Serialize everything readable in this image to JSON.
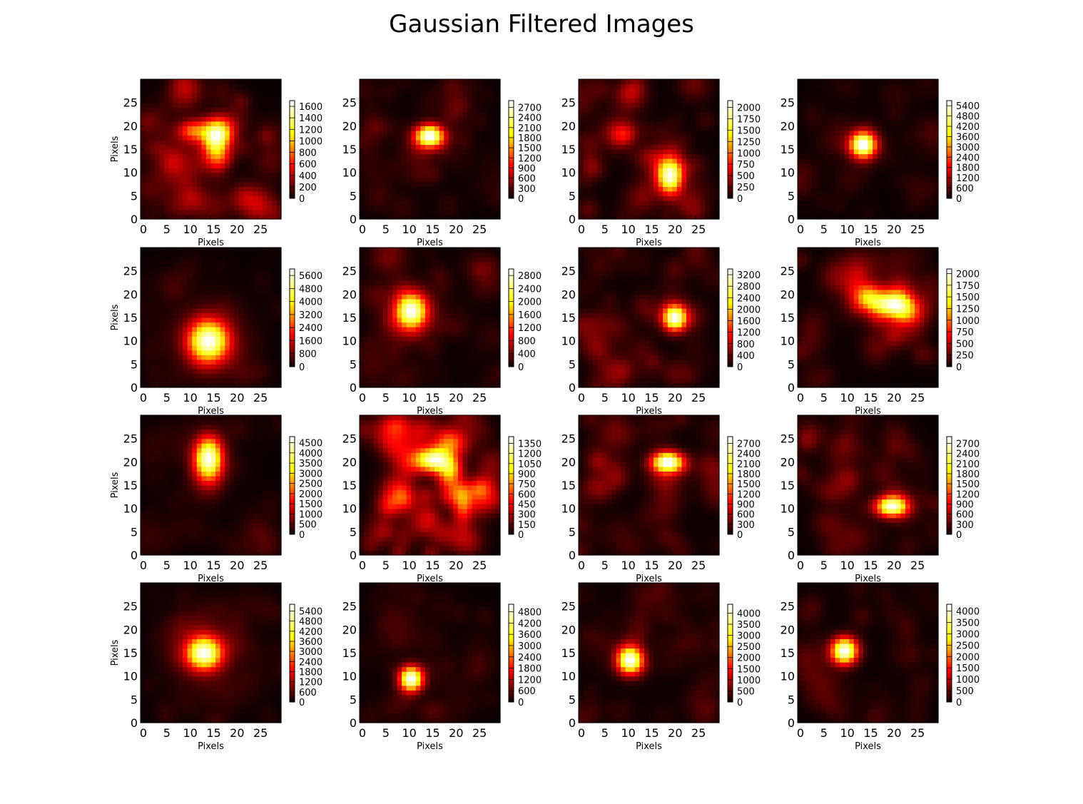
{
  "figure": {
    "title": "Gaussian Filtered Images"
  },
  "colormap": {
    "name": "hot",
    "stops": [
      "#0b0000",
      "#ff0000",
      "#ffff00",
      "#ffffff"
    ]
  },
  "chart_data": [
    {
      "type": "heatmap",
      "row": 0,
      "col": 0,
      "xlabel": "Pixels",
      "ylabel": "Pixels",
      "xticks": [
        0,
        5,
        10,
        15,
        20,
        25
      ],
      "yticks": [
        0,
        5,
        10,
        15,
        20,
        25
      ],
      "xlim": [
        0,
        30
      ],
      "ylim": [
        0,
        30
      ],
      "blobs": [
        {
          "x": 16.5,
          "y": 18.5,
          "sx": 2.2,
          "sy": 2.2,
          "a": 1.0
        },
        {
          "x": 11,
          "y": 19,
          "sx": 2.2,
          "sy": 1.6,
          "a": 0.55
        },
        {
          "x": 16,
          "y": 15,
          "sx": 1.8,
          "sy": 2.5,
          "a": 0.5
        }
      ],
      "noise": 0.28,
      "seed": 11,
      "colorbar": {
        "max": 1700,
        "ticks": [
          0,
          200,
          400,
          600,
          800,
          1000,
          1200,
          1400,
          1600
        ]
      }
    },
    {
      "type": "heatmap",
      "row": 0,
      "col": 1,
      "xlabel": "Pixels",
      "ylabel": "",
      "xticks": [
        0,
        5,
        10,
        15,
        20,
        25
      ],
      "yticks": [
        0,
        5,
        10,
        15,
        20,
        25
      ],
      "xlim": [
        0,
        30
      ],
      "ylim": [
        0,
        30
      ],
      "blobs": [
        {
          "x": 15,
          "y": 18,
          "sx": 2.0,
          "sy": 1.5,
          "a": 1.0
        },
        {
          "x": 16,
          "y": 17,
          "sx": 2.2,
          "sy": 1.8,
          "a": 0.3
        }
      ],
      "noise": 0.14,
      "seed": 23,
      "colorbar": {
        "max": 2900,
        "ticks": [
          0,
          300,
          600,
          900,
          1200,
          1500,
          1800,
          2100,
          2400,
          2700
        ]
      }
    },
    {
      "type": "heatmap",
      "row": 0,
      "col": 2,
      "xlabel": "Pixels",
      "ylabel": "",
      "xticks": [
        0,
        5,
        10,
        15,
        20,
        25
      ],
      "yticks": [
        0,
        5,
        10,
        15,
        20,
        25
      ],
      "xlim": [
        0,
        30
      ],
      "ylim": [
        0,
        30
      ],
      "blobs": [
        {
          "x": 19.5,
          "y": 9,
          "sx": 1.8,
          "sy": 2.4,
          "a": 1.0
        },
        {
          "x": 18,
          "y": 12,
          "sx": 2.5,
          "sy": 2.5,
          "a": 0.3
        }
      ],
      "noise": 0.2,
      "seed": 37,
      "colorbar": {
        "max": 2150,
        "ticks": [
          0,
          250,
          500,
          750,
          1000,
          1250,
          1500,
          1750,
          2000
        ]
      }
    },
    {
      "type": "heatmap",
      "row": 0,
      "col": 3,
      "xlabel": "Pixels",
      "ylabel": "",
      "xticks": [
        0,
        5,
        10,
        15,
        20,
        25
      ],
      "yticks": [
        0,
        5,
        10,
        15,
        20,
        25
      ],
      "xlim": [
        0,
        30
      ],
      "ylim": [
        0,
        30
      ],
      "blobs": [
        {
          "x": 14,
          "y": 16,
          "sx": 1.9,
          "sy": 1.9,
          "a": 1.0
        }
      ],
      "noise": 0.07,
      "seed": 41,
      "colorbar": {
        "max": 5700,
        "ticks": [
          0,
          600,
          1200,
          1800,
          2400,
          3000,
          3600,
          4200,
          4800,
          5400
        ]
      }
    },
    {
      "type": "heatmap",
      "row": 1,
      "col": 0,
      "xlabel": "Pixels",
      "ylabel": "Pixels",
      "xticks": [
        0,
        5,
        10,
        15,
        20,
        25
      ],
      "yticks": [
        0,
        5,
        10,
        15,
        20,
        25
      ],
      "xlim": [
        0,
        30
      ],
      "ylim": [
        0,
        30
      ],
      "blobs": [
        {
          "x": 14.5,
          "y": 10,
          "sx": 2.8,
          "sy": 2.9,
          "a": 1.0
        },
        {
          "x": 14.5,
          "y": 10,
          "sx": 5,
          "sy": 5,
          "a": 0.22
        }
      ],
      "noise": 0.06,
      "seed": 53,
      "colorbar": {
        "max": 6000,
        "ticks": [
          0,
          800,
          1600,
          2400,
          3200,
          4000,
          4800,
          5600
        ]
      }
    },
    {
      "type": "heatmap",
      "row": 1,
      "col": 1,
      "xlabel": "Pixels",
      "ylabel": "",
      "xticks": [
        0,
        5,
        10,
        15,
        20,
        25
      ],
      "yticks": [
        0,
        5,
        10,
        15,
        20,
        25
      ],
      "xlim": [
        0,
        30
      ],
      "ylim": [
        0,
        30
      ],
      "blobs": [
        {
          "x": 11,
          "y": 16.5,
          "sx": 2.2,
          "sy": 2.5,
          "a": 1.0
        },
        {
          "x": 11,
          "y": 16,
          "sx": 4,
          "sy": 4,
          "a": 0.25
        }
      ],
      "noise": 0.12,
      "seed": 67,
      "colorbar": {
        "max": 3000,
        "ticks": [
          0,
          400,
          800,
          1200,
          1600,
          2000,
          2400,
          2800
        ]
      }
    },
    {
      "type": "heatmap",
      "row": 1,
      "col": 2,
      "xlabel": "Pixels",
      "ylabel": "",
      "xticks": [
        0,
        5,
        10,
        15,
        20,
        25
      ],
      "yticks": [
        0,
        5,
        10,
        15,
        20,
        25
      ],
      "xlim": [
        0,
        30
      ],
      "ylim": [
        0,
        30
      ],
      "blobs": [
        {
          "x": 20.5,
          "y": 15,
          "sx": 1.7,
          "sy": 1.9,
          "a": 1.0
        }
      ],
      "noise": 0.15,
      "seed": 79,
      "colorbar": {
        "max": 3400,
        "ticks": [
          0,
          400,
          800,
          1200,
          1600,
          2000,
          2400,
          2800,
          3200
        ]
      }
    },
    {
      "type": "heatmap",
      "row": 1,
      "col": 3,
      "xlabel": "Pixels",
      "ylabel": "",
      "xticks": [
        0,
        5,
        10,
        15,
        20,
        25
      ],
      "yticks": [
        0,
        5,
        10,
        15,
        20,
        25
      ],
      "xlim": [
        0,
        30
      ],
      "ylim": [
        0,
        30
      ],
      "blobs": [
        {
          "x": 20,
          "y": 18,
          "sx": 3.0,
          "sy": 1.8,
          "a": 1.0
        },
        {
          "x": 15,
          "y": 19.5,
          "sx": 2.2,
          "sy": 2.0,
          "a": 0.6
        },
        {
          "x": 23,
          "y": 16,
          "sx": 2.5,
          "sy": 2,
          "a": 0.5
        }
      ],
      "noise": 0.22,
      "seed": 83,
      "colorbar": {
        "max": 2100,
        "ticks": [
          0,
          250,
          500,
          750,
          1000,
          1250,
          1500,
          1750,
          2000
        ]
      }
    },
    {
      "type": "heatmap",
      "row": 2,
      "col": 0,
      "xlabel": "Pixels",
      "ylabel": "Pixels",
      "xticks": [
        0,
        5,
        10,
        15,
        20,
        25
      ],
      "yticks": [
        0,
        5,
        10,
        15,
        20,
        25
      ],
      "xlim": [
        0,
        30
      ],
      "ylim": [
        0,
        30
      ],
      "blobs": [
        {
          "x": 14.5,
          "y": 21,
          "sx": 2.0,
          "sy": 2.8,
          "a": 1.0
        },
        {
          "x": 14.5,
          "y": 18,
          "sx": 2.5,
          "sy": 3.5,
          "a": 0.35
        }
      ],
      "noise": 0.08,
      "seed": 97,
      "colorbar": {
        "max": 4800,
        "ticks": [
          0,
          500,
          1000,
          1500,
          2000,
          2500,
          3000,
          3500,
          4000,
          4500
        ]
      }
    },
    {
      "type": "heatmap",
      "row": 2,
      "col": 1,
      "xlabel": "Pixels",
      "ylabel": "",
      "xticks": [
        0,
        5,
        10,
        15,
        20,
        25
      ],
      "yticks": [
        0,
        5,
        10,
        15,
        20,
        25
      ],
      "xlim": [
        0,
        30
      ],
      "ylim": [
        0,
        30
      ],
      "blobs": [
        {
          "x": 16,
          "y": 20.5,
          "sx": 2.6,
          "sy": 1.8,
          "a": 1.0
        },
        {
          "x": 19,
          "y": 17,
          "sx": 1.8,
          "sy": 2.5,
          "a": 0.5
        },
        {
          "x": 22,
          "y": 11,
          "sx": 1.5,
          "sy": 3,
          "a": 0.45
        },
        {
          "x": 20,
          "y": 24,
          "sx": 2.5,
          "sy": 2,
          "a": 0.4
        }
      ],
      "noise": 0.4,
      "seed": 101,
      "colorbar": {
        "max": 1450,
        "ticks": [
          0,
          150,
          300,
          450,
          600,
          750,
          900,
          1050,
          1200,
          1350
        ]
      }
    },
    {
      "type": "heatmap",
      "row": 2,
      "col": 2,
      "xlabel": "Pixels",
      "ylabel": "",
      "xticks": [
        0,
        5,
        10,
        15,
        20,
        25
      ],
      "yticks": [
        0,
        5,
        10,
        15,
        20,
        25
      ],
      "xlim": [
        0,
        30
      ],
      "ylim": [
        0,
        30
      ],
      "blobs": [
        {
          "x": 19,
          "y": 20,
          "sx": 2.3,
          "sy": 1.5,
          "a": 1.0
        }
      ],
      "noise": 0.16,
      "seed": 113,
      "colorbar": {
        "max": 2900,
        "ticks": [
          0,
          300,
          600,
          900,
          1200,
          1500,
          1800,
          2100,
          2400,
          2700
        ]
      }
    },
    {
      "type": "heatmap",
      "row": 2,
      "col": 3,
      "xlabel": "Pixels",
      "ylabel": "",
      "xticks": [
        0,
        5,
        10,
        15,
        20,
        25
      ],
      "yticks": [
        0,
        5,
        10,
        15,
        20,
        25
      ],
      "xlim": [
        0,
        30
      ],
      "ylim": [
        0,
        30
      ],
      "blobs": [
        {
          "x": 20,
          "y": 10.5,
          "sx": 2.3,
          "sy": 1.5,
          "a": 1.0
        }
      ],
      "noise": 0.16,
      "seed": 127,
      "colorbar": {
        "max": 2900,
        "ticks": [
          0,
          300,
          600,
          900,
          1200,
          1500,
          1800,
          2100,
          2400,
          2700
        ]
      }
    },
    {
      "type": "heatmap",
      "row": 3,
      "col": 0,
      "xlabel": "Pixels",
      "ylabel": "Pixels",
      "xticks": [
        0,
        5,
        10,
        15,
        20,
        25
      ],
      "yticks": [
        0,
        5,
        10,
        15,
        20,
        25
      ],
      "xlim": [
        0,
        30
      ],
      "ylim": [
        0,
        30
      ],
      "blobs": [
        {
          "x": 13.5,
          "y": 15,
          "sx": 2.5,
          "sy": 2.3,
          "a": 1.0
        },
        {
          "x": 13.5,
          "y": 15,
          "sx": 5,
          "sy": 5,
          "a": 0.2
        }
      ],
      "noise": 0.07,
      "seed": 131,
      "colorbar": {
        "max": 5800,
        "ticks": [
          0,
          600,
          1200,
          1800,
          2400,
          3000,
          3600,
          4200,
          4800,
          5400
        ]
      }
    },
    {
      "type": "heatmap",
      "row": 3,
      "col": 1,
      "xlabel": "Pixels",
      "ylabel": "",
      "xticks": [
        0,
        5,
        10,
        15,
        20,
        25
      ],
      "yticks": [
        0,
        5,
        10,
        15,
        20,
        25
      ],
      "xlim": [
        0,
        30
      ],
      "ylim": [
        0,
        30
      ],
      "blobs": [
        {
          "x": 11,
          "y": 9.5,
          "sx": 1.7,
          "sy": 1.8,
          "a": 1.0
        }
      ],
      "noise": 0.07,
      "seed": 149,
      "colorbar": {
        "max": 5200,
        "ticks": [
          0,
          600,
          1200,
          1800,
          2400,
          3000,
          3600,
          4200,
          4800
        ]
      }
    },
    {
      "type": "heatmap",
      "row": 3,
      "col": 2,
      "xlabel": "Pixels",
      "ylabel": "",
      "xticks": [
        0,
        5,
        10,
        15,
        20,
        25
      ],
      "yticks": [
        0,
        5,
        10,
        15,
        20,
        25
      ],
      "xlim": [
        0,
        30
      ],
      "ylim": [
        0,
        30
      ],
      "blobs": [
        {
          "x": 11,
          "y": 13.5,
          "sx": 1.9,
          "sy": 2.0,
          "a": 1.0
        }
      ],
      "noise": 0.09,
      "seed": 157,
      "colorbar": {
        "max": 4400,
        "ticks": [
          0,
          500,
          1000,
          1500,
          2000,
          2500,
          3000,
          3500,
          4000
        ]
      }
    },
    {
      "type": "heatmap",
      "row": 3,
      "col": 3,
      "xlabel": "Pixels",
      "ylabel": "",
      "xticks": [
        0,
        5,
        10,
        15,
        20,
        25
      ],
      "yticks": [
        0,
        5,
        10,
        15,
        20,
        25
      ],
      "xlim": [
        0,
        30
      ],
      "ylim": [
        0,
        30
      ],
      "blobs": [
        {
          "x": 10,
          "y": 15.5,
          "sx": 1.9,
          "sy": 1.9,
          "a": 1.0
        }
      ],
      "noise": 0.09,
      "seed": 163,
      "colorbar": {
        "max": 4300,
        "ticks": [
          0,
          500,
          1000,
          1500,
          2000,
          2500,
          3000,
          3500,
          4000
        ]
      }
    }
  ]
}
